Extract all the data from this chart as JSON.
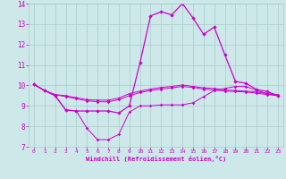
{
  "xlabel": "Windchill (Refroidissement éolien,°C)",
  "xlim": [
    -0.5,
    23.5
  ],
  "ylim": [
    7,
    14
  ],
  "yticks": [
    7,
    8,
    9,
    10,
    11,
    12,
    13,
    14
  ],
  "xticks": [
    0,
    1,
    2,
    3,
    4,
    5,
    6,
    7,
    8,
    9,
    10,
    11,
    12,
    13,
    14,
    15,
    16,
    17,
    18,
    19,
    20,
    21,
    22,
    23
  ],
  "bg_color": "#cce8e8",
  "grid_color": "#aacccc",
  "line_color": "#cc00cc",
  "line1_x": [
    0,
    1,
    2,
    3,
    4,
    5,
    6,
    7,
    8,
    9,
    10,
    11,
    12,
    13,
    14,
    15,
    16,
    17,
    18,
    19,
    20,
    21,
    22,
    23
  ],
  "line1_y": [
    10.05,
    9.75,
    9.5,
    8.8,
    8.75,
    7.9,
    7.35,
    7.35,
    7.6,
    8.7,
    9.0,
    9.0,
    9.05,
    9.05,
    9.05,
    9.15,
    9.45,
    9.75,
    9.85,
    9.95,
    9.95,
    9.75,
    9.6,
    9.5
  ],
  "line2_x": [
    0,
    1,
    2,
    3,
    4,
    5,
    6,
    7,
    8,
    9,
    10,
    11,
    12,
    13,
    14,
    15,
    16,
    17,
    18,
    19,
    20,
    21,
    22,
    23
  ],
  "line2_y": [
    10.05,
    9.75,
    9.55,
    9.45,
    9.35,
    9.25,
    9.2,
    9.2,
    9.3,
    9.5,
    9.65,
    9.75,
    9.82,
    9.88,
    9.95,
    9.9,
    9.82,
    9.78,
    9.72,
    9.7,
    9.68,
    9.62,
    9.55,
    9.5
  ],
  "line3_x": [
    0,
    1,
    2,
    3,
    4,
    5,
    6,
    7,
    8,
    9,
    10,
    11,
    12,
    13,
    14,
    15,
    16,
    17,
    18,
    19,
    20,
    21,
    22,
    23
  ],
  "line3_y": [
    10.05,
    9.75,
    9.55,
    9.5,
    9.4,
    9.3,
    9.28,
    9.28,
    9.38,
    9.6,
    9.72,
    9.82,
    9.9,
    9.95,
    10.02,
    9.95,
    9.88,
    9.85,
    9.78,
    9.75,
    9.72,
    9.68,
    9.6,
    9.55
  ],
  "line4_x": [
    0,
    1,
    2,
    3,
    4,
    5,
    6,
    7,
    8,
    9,
    10,
    11,
    12,
    13,
    14,
    15,
    16,
    17,
    18,
    19,
    20,
    21,
    22,
    23
  ],
  "line4_y": [
    10.05,
    9.75,
    9.5,
    8.8,
    8.75,
    8.75,
    8.75,
    8.75,
    8.65,
    9.0,
    11.1,
    13.4,
    13.6,
    13.45,
    14.0,
    13.3,
    12.5,
    12.85,
    11.5,
    10.2,
    10.1,
    9.8,
    9.7,
    9.5
  ]
}
